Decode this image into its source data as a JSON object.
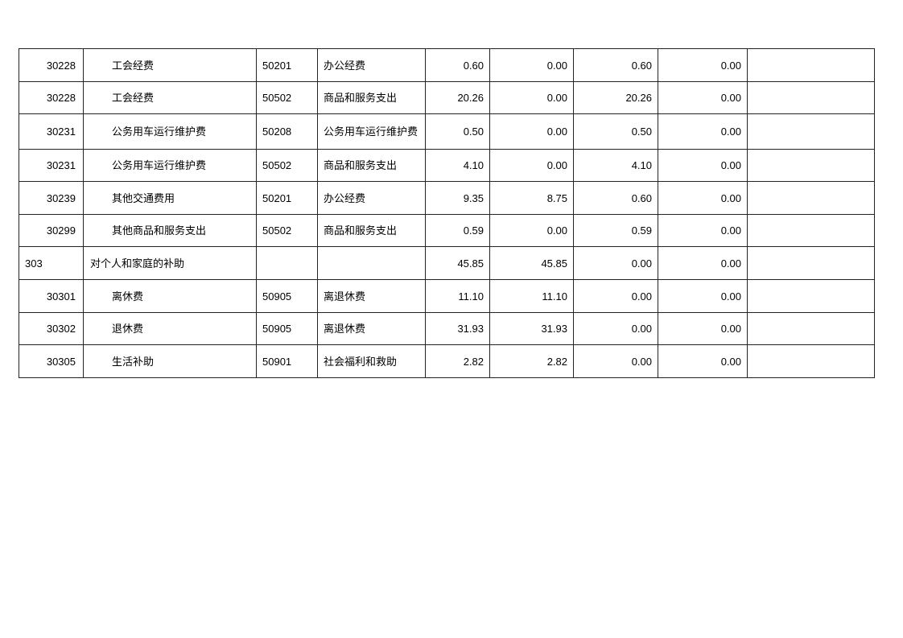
{
  "table": {
    "rows": [
      {
        "code": "30228",
        "name": "工会经费",
        "econ_code": "50201",
        "econ_name": "办公经费",
        "total": "0.60",
        "basic": "0.00",
        "project": "0.60",
        "other": "0.00",
        "note": "",
        "category": false
      },
      {
        "code": "30228",
        "name": "工会经费",
        "econ_code": "50502",
        "econ_name": "商品和服务支出",
        "total": "20.26",
        "basic": "0.00",
        "project": "20.26",
        "other": "0.00",
        "note": "",
        "category": false
      },
      {
        "code": "30231",
        "name": "公务用车运行维护费",
        "econ_code": "50208",
        "econ_name": "公务用车运行维护费",
        "total": "0.50",
        "basic": "0.00",
        "project": "0.50",
        "other": "0.00",
        "note": "",
        "category": false
      },
      {
        "code": "30231",
        "name": "公务用车运行维护费",
        "econ_code": "50502",
        "econ_name": "商品和服务支出",
        "total": "4.10",
        "basic": "0.00",
        "project": "4.10",
        "other": "0.00",
        "note": "",
        "category": false
      },
      {
        "code": "30239",
        "name": "其他交通费用",
        "econ_code": "50201",
        "econ_name": "办公经费",
        "total": "9.35",
        "basic": "8.75",
        "project": "0.60",
        "other": "0.00",
        "note": "",
        "category": false
      },
      {
        "code": "30299",
        "name": "其他商品和服务支出",
        "econ_code": "50502",
        "econ_name": "商品和服务支出",
        "total": "0.59",
        "basic": "0.00",
        "project": "0.59",
        "other": "0.00",
        "note": "",
        "category": false
      },
      {
        "code": "303",
        "name": "对个人和家庭的补助",
        "econ_code": "",
        "econ_name": "",
        "total": "45.85",
        "basic": "45.85",
        "project": "0.00",
        "other": "0.00",
        "note": "",
        "category": true
      },
      {
        "code": "30301",
        "name": "离休费",
        "econ_code": "50905",
        "econ_name": "离退休费",
        "total": "11.10",
        "basic": "11.10",
        "project": "0.00",
        "other": "0.00",
        "note": "",
        "category": false
      },
      {
        "code": "30302",
        "name": "退休费",
        "econ_code": "50905",
        "econ_name": "离退休费",
        "total": "31.93",
        "basic": "31.93",
        "project": "0.00",
        "other": "0.00",
        "note": "",
        "category": false
      },
      {
        "code": "30305",
        "name": "生活补助",
        "econ_code": "50901",
        "econ_name": "社会福利和救助",
        "total": "2.82",
        "basic": "2.82",
        "project": "0.00",
        "other": "0.00",
        "note": "",
        "category": false
      }
    ]
  }
}
